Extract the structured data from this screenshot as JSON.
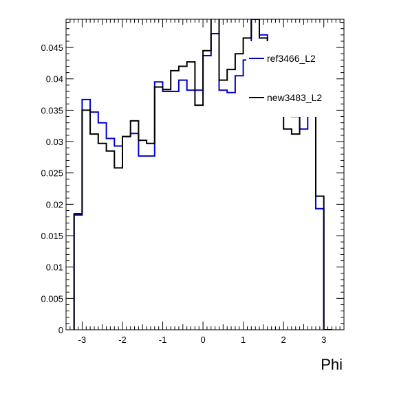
{
  "chart_data": {
    "type": "line",
    "title": "",
    "xlabel": "Phi",
    "ylabel": "",
    "xlim": [
      -3.4,
      3.5
    ],
    "ylim": [
      0,
      0.0495
    ],
    "grid": false,
    "legend_position": "top-right",
    "x_ticks": [
      "-3",
      "-2",
      "-1",
      "0",
      "1",
      "2",
      "3"
    ],
    "y_ticks": [
      "0",
      "0.005",
      "0.01",
      "0.015",
      "0.02",
      "0.025",
      "0.03",
      "0.035",
      "0.04",
      "0.045"
    ],
    "bin_edges": [
      -3.2,
      -3.0,
      -2.8,
      -2.6,
      -2.4,
      -2.2,
      -2.0,
      -1.8,
      -1.6,
      -1.4,
      -1.2,
      -1.0,
      -0.8,
      -0.6,
      -0.4,
      -0.2,
      0.0,
      0.2,
      0.4,
      0.6,
      0.8,
      1.0,
      1.2,
      1.4,
      1.6,
      1.8,
      2.0,
      2.2,
      2.4,
      2.6,
      2.8,
      3.0,
      3.2
    ],
    "series": [
      {
        "name": "ref3466_L2",
        "color": "#0000cc",
        "values": [
          0.0183,
          0.0367,
          0.0347,
          0.033,
          0.0305,
          0.0293,
          0.0308,
          0.0313,
          0.0277,
          0.0277,
          0.0395,
          0.038,
          0.038,
          0.0398,
          0.0382,
          0.0382,
          0.0437,
          0.0472,
          0.0382,
          0.0378,
          0.0405,
          0.043,
          0.0495,
          0.047,
          0.042,
          0.04,
          0.037,
          0.034,
          0.032,
          0.039,
          0.0193,
          0.0
        ]
      },
      {
        "name": "new3483_L2",
        "color": "#000000",
        "values": [
          0.0185,
          0.035,
          0.0312,
          0.0297,
          0.0285,
          0.0258,
          0.0308,
          0.0333,
          0.0302,
          0.0297,
          0.0387,
          0.0383,
          0.0413,
          0.042,
          0.0427,
          0.0358,
          0.0445,
          0.05,
          0.0398,
          0.0415,
          0.044,
          0.0465,
          0.05,
          0.0465,
          0.0415,
          0.038,
          0.032,
          0.0312,
          0.038,
          0.0395,
          0.0213,
          0.0
        ]
      }
    ]
  }
}
